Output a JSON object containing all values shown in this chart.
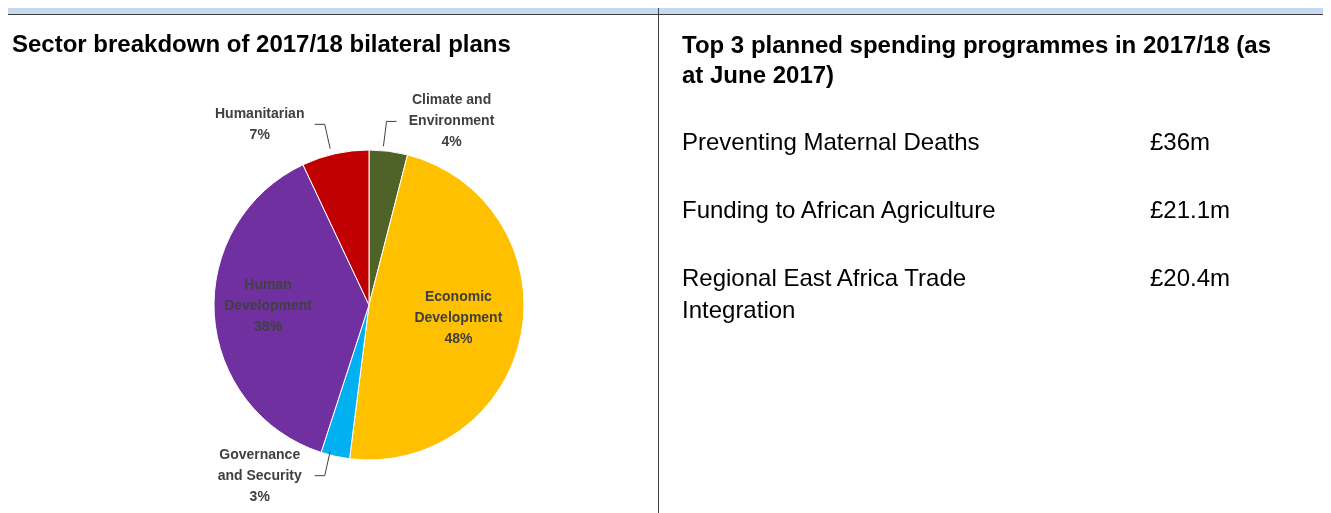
{
  "chart_data": [
    {
      "type": "pie",
      "title": "Sector breakdown of 2017/18 bilateral plans",
      "categories": [
        "Climate and Environment",
        "Economic Development",
        "Governance and Security",
        "Human Development",
        "Humanitarian"
      ],
      "values": [
        4,
        48,
        3,
        38,
        7
      ],
      "colors": [
        "#4f6228",
        "#ffc000",
        "#00b0f0",
        "#7030a0",
        "#c00000"
      ],
      "value_labels": [
        "4%",
        "48%",
        "3%",
        "38%",
        "7%"
      ],
      "legend": false
    },
    {
      "type": "other",
      "title": "Top 3 planned spending programmes in 2017/18 (as at June 2017)",
      "annotations": [
        "Preventing Maternal Deaths",
        "£36m",
        "Funding to African Agriculture",
        "£21.1m",
        "Regional East Africa Trade Integration",
        "£20.4m"
      ]
    }
  ]
}
